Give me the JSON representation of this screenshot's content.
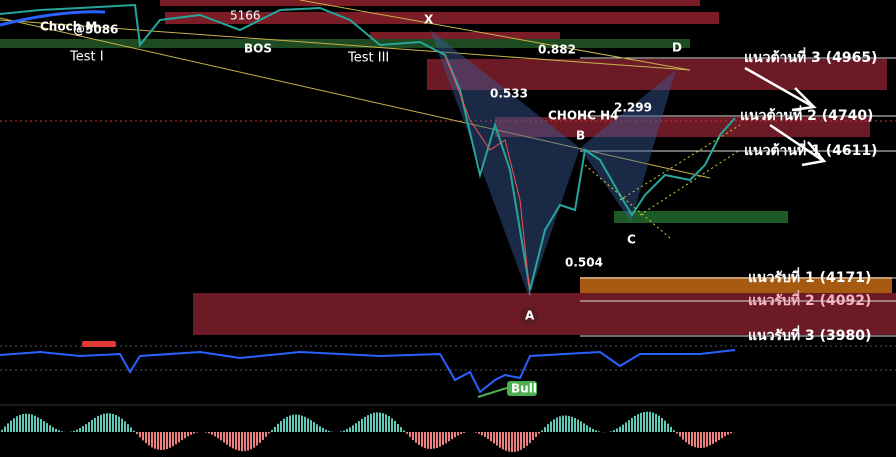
{
  "annotations": {
    "choch": "Choch M",
    "price_tag": "@5086",
    "test1": "Test I",
    "bos": "BOS",
    "high": "5166",
    "test3": "Test III",
    "x": "X",
    "fib_d": "0.882",
    "d": "D",
    "fib_b": "0.533",
    "chohc": "CHOHC H4",
    "fib_ext": "2.299",
    "b": "B",
    "c": "C",
    "fib_c": "0.504",
    "a": "A",
    "bull": "Bull"
  },
  "levels": [
    {
      "label": "แนวต้านที่ 3 (4965)"
    },
    {
      "label": "แนวต้านที่ 2 (4740)"
    },
    {
      "label": "แนวต้านที่ 1 (4611)"
    },
    {
      "label": "แนวรับที่ 1 (4171)"
    },
    {
      "label": "แนวรับที่ 2 (4092)"
    },
    {
      "label": "แนวรับที่ 3 (3980)"
    }
  ]
}
